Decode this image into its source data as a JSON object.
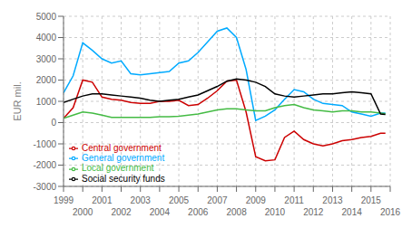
{
  "chart_data": {
    "type": "line",
    "ylabel": "EUR mil.",
    "x": [
      1999,
      1999.5,
      2000,
      2000.5,
      2001,
      2001.5,
      2002,
      2002.5,
      2003,
      2003.5,
      2004,
      2004.5,
      2005,
      2005.5,
      2006,
      2006.5,
      2007,
      2007.5,
      2008,
      2008.5,
      2009,
      2009.5,
      2010,
      2010.5,
      2011,
      2011.5,
      2012,
      2012.5,
      2013,
      2013.5,
      2014,
      2014.5,
      2015,
      2015.5,
      2015.75
    ],
    "series": [
      {
        "name": "General government",
        "color": "#00aaff",
        "values": [
          1400,
          2200,
          3750,
          3400,
          3000,
          2800,
          2900,
          2300,
          2250,
          2300,
          2350,
          2400,
          2800,
          2900,
          3300,
          3800,
          4300,
          4450,
          4000,
          2500,
          100,
          300,
          600,
          1100,
          1550,
          1450,
          1100,
          900,
          850,
          800,
          500,
          400,
          300,
          450,
          450
        ]
      },
      {
        "name": "Central government",
        "color": "#cc0000",
        "values": [
          200,
          700,
          2000,
          1900,
          1200,
          1100,
          1050,
          950,
          900,
          900,
          1000,
          1000,
          1050,
          800,
          850,
          1150,
          1500,
          1950,
          2000,
          500,
          -1600,
          -1800,
          -1750,
          -700,
          -400,
          -800,
          -1000,
          -1100,
          -1000,
          -850,
          -800,
          -700,
          -650,
          -500,
          -500
        ]
      },
      {
        "name": "Local government",
        "color": "#44bb44",
        "values": [
          200,
          350,
          500,
          450,
          350,
          250,
          250,
          250,
          250,
          250,
          280,
          280,
          300,
          350,
          400,
          500,
          600,
          650,
          650,
          600,
          550,
          550,
          700,
          800,
          850,
          700,
          600,
          550,
          500,
          550,
          550,
          500,
          500,
          450,
          420
        ]
      },
      {
        "name": "Social security funds",
        "color": "#000000",
        "values": [
          950,
          1100,
          1250,
          1350,
          1350,
          1300,
          1250,
          1200,
          1150,
          1050,
          1000,
          1050,
          1100,
          1200,
          1300,
          1500,
          1700,
          1950,
          2050,
          2000,
          1900,
          1700,
          1350,
          1250,
          1200,
          1250,
          1300,
          1350,
          1350,
          1400,
          1450,
          1400,
          1350,
          400,
          380
        ]
      }
    ],
    "xlim": [
      1999,
      2016
    ],
    "xticks": [
      1999,
      2000,
      2001,
      2002,
      2003,
      2004,
      2005,
      2006,
      2007,
      2008,
      2009,
      2010,
      2011,
      2012,
      2013,
      2014,
      2015,
      2016
    ],
    "ylim": [
      -3000,
      5000
    ],
    "yticks": [
      -3000,
      -2000,
      -1000,
      0,
      1000,
      2000,
      3000,
      4000,
      5000
    ],
    "grid": true,
    "legend": "lower left"
  }
}
